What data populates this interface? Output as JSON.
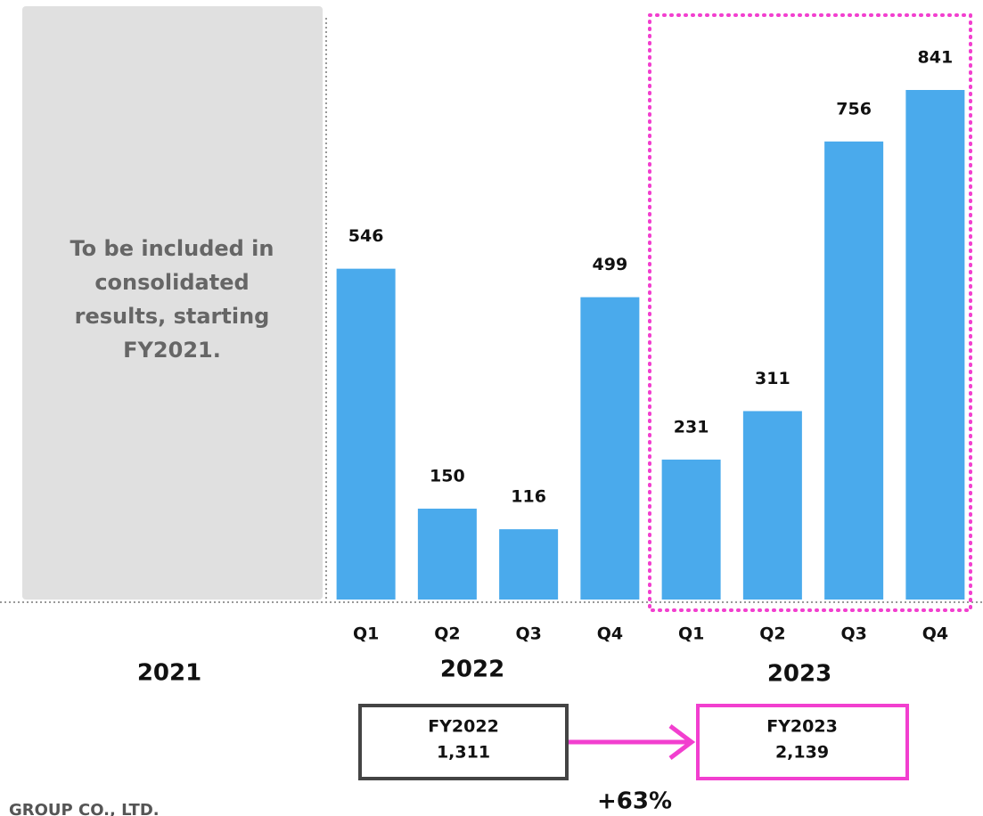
{
  "chart_data": {
    "type": "bar",
    "categories": [
      "Q1",
      "Q2",
      "Q3",
      "Q4",
      "Q1",
      "Q2",
      "Q3",
      "Q4"
    ],
    "values": [
      546,
      150,
      116,
      499,
      231,
      311,
      756,
      841
    ],
    "color": "#4aaaec",
    "years": [
      "2021",
      "2022",
      "2023"
    ],
    "note": [
      "To be included in",
      "consolidated",
      "results, starting",
      "FY2021."
    ],
    "fy_totals": [
      {
        "label": "FY2022",
        "value": 1311,
        "value_label": "1,311",
        "color": "#444444"
      },
      {
        "label": "FY2023",
        "value": 2139,
        "value_label": "2,139",
        "color": "#f23fcf"
      }
    ],
    "growth": "+63%",
    "footer": "GROUP CO., LTD."
  }
}
